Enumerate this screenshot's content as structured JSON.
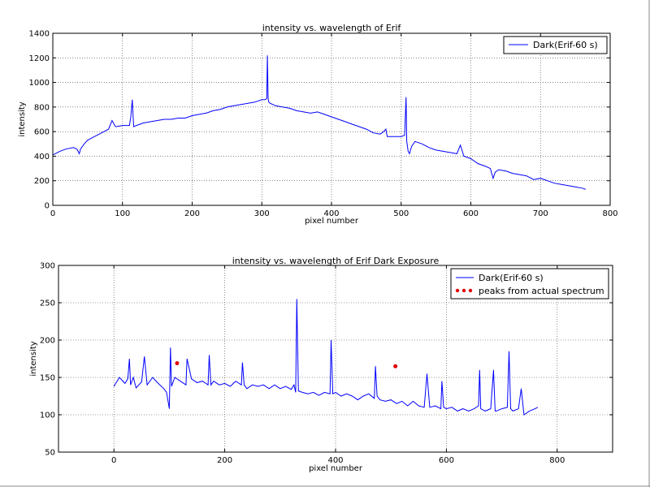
{
  "figure": {
    "background": "#ffffff",
    "border_color": "#888888"
  },
  "chart_data": [
    {
      "type": "line",
      "title": "intensity vs. wavelength of Erif",
      "xlabel": "pixel number",
      "ylabel": "intensity",
      "xlim": [
        0,
        800
      ],
      "ylim": [
        0,
        1400
      ],
      "xticks": [
        0,
        100,
        200,
        300,
        400,
        500,
        600,
        700,
        800
      ],
      "yticks": [
        0,
        200,
        400,
        600,
        800,
        1000,
        1200,
        1400
      ],
      "grid": true,
      "legend_position": "top-right",
      "series": [
        {
          "name": "Dark(Erif-60 s)",
          "color": "#0000ff",
          "marker": "line",
          "x": [
            0,
            10,
            20,
            30,
            35,
            38,
            40,
            45,
            50,
            60,
            70,
            80,
            85,
            90,
            100,
            110,
            112,
            114,
            116,
            120,
            130,
            140,
            150,
            160,
            170,
            180,
            190,
            200,
            210,
            220,
            230,
            240,
            250,
            260,
            270,
            280,
            290,
            300,
            305,
            307,
            308,
            309,
            310,
            312,
            320,
            330,
            340,
            350,
            360,
            370,
            380,
            390,
            400,
            410,
            420,
            430,
            440,
            450,
            460,
            470,
            475,
            478,
            480,
            490,
            500,
            505,
            507,
            508,
            509,
            510,
            512,
            515,
            520,
            530,
            540,
            550,
            560,
            570,
            580,
            585,
            590,
            600,
            610,
            620,
            628,
            632,
            635,
            640,
            650,
            660,
            670,
            680,
            690,
            700,
            710,
            720,
            730,
            740,
            750,
            760,
            765
          ],
          "y": [
            410,
            440,
            460,
            470,
            455,
            420,
            460,
            500,
            530,
            560,
            590,
            620,
            690,
            640,
            650,
            650,
            720,
            860,
            640,
            650,
            670,
            680,
            690,
            700,
            700,
            710,
            710,
            730,
            740,
            750,
            770,
            780,
            800,
            810,
            820,
            830,
            840,
            860,
            860,
            870,
            1220,
            870,
            840,
            830,
            810,
            800,
            790,
            770,
            760,
            750,
            760,
            740,
            720,
            700,
            680,
            660,
            640,
            620,
            590,
            580,
            600,
            620,
            560,
            560,
            560,
            570,
            880,
            520,
            480,
            440,
            420,
            480,
            520,
            500,
            470,
            450,
            440,
            430,
            420,
            490,
            400,
            380,
            340,
            320,
            300,
            220,
            270,
            290,
            280,
            260,
            250,
            240,
            210,
            220,
            200,
            180,
            170,
            160,
            150,
            140,
            130
          ]
        }
      ]
    },
    {
      "type": "line",
      "title": "intensity vs. wavelength of Erif Dark Exposure",
      "xlabel": "pixel number",
      "ylabel": "intensity",
      "xlim": [
        -100,
        900
      ],
      "ylim": [
        50,
        300
      ],
      "xticks": [
        0,
        200,
        400,
        600,
        800
      ],
      "yticks": [
        50,
        100,
        150,
        200,
        250,
        300
      ],
      "grid": true,
      "legend_position": "top-right",
      "series": [
        {
          "name": "Dark(Erif-60 s)",
          "color": "#0000ff",
          "marker": "line",
          "x": [
            0,
            10,
            20,
            25,
            28,
            30,
            35,
            40,
            50,
            55,
            60,
            70,
            80,
            90,
            95,
            100,
            102,
            104,
            110,
            120,
            130,
            132,
            140,
            150,
            160,
            170,
            172,
            175,
            180,
            190,
            200,
            210,
            220,
            230,
            232,
            235,
            240,
            250,
            260,
            270,
            280,
            290,
            300,
            310,
            320,
            325,
            328,
            330,
            333,
            340,
            350,
            360,
            370,
            380,
            390,
            392,
            395,
            400,
            410,
            420,
            430,
            440,
            450,
            460,
            470,
            472,
            475,
            480,
            490,
            500,
            510,
            520,
            530,
            540,
            550,
            560,
            565,
            570,
            580,
            590,
            592,
            595,
            600,
            610,
            620,
            630,
            640,
            650,
            658,
            660,
            662,
            670,
            680,
            685,
            688,
            690,
            700,
            710,
            713,
            716,
            720,
            730,
            735,
            740,
            750,
            760,
            765
          ],
          "y": [
            138,
            150,
            142,
            148,
            175,
            140,
            150,
            136,
            144,
            178,
            140,
            150,
            142,
            135,
            130,
            108,
            190,
            138,
            150,
            145,
            140,
            175,
            148,
            143,
            145,
            140,
            180,
            140,
            145,
            140,
            142,
            138,
            145,
            140,
            170,
            140,
            135,
            140,
            138,
            140,
            135,
            140,
            135,
            138,
            134,
            140,
            130,
            255,
            132,
            130,
            128,
            130,
            126,
            130,
            128,
            200,
            128,
            130,
            125,
            128,
            125,
            120,
            125,
            128,
            122,
            165,
            125,
            120,
            118,
            120,
            115,
            118,
            112,
            118,
            112,
            110,
            155,
            110,
            112,
            108,
            145,
            110,
            108,
            110,
            105,
            108,
            105,
            108,
            112,
            160,
            108,
            105,
            108,
            160,
            105,
            105,
            108,
            110,
            185,
            108,
            105,
            108,
            135,
            100,
            105,
            108,
            110
          ]
        },
        {
          "name": "peaks from actual spectrum",
          "color": "#e00000",
          "marker": "point",
          "x": [
            114,
            508
          ],
          "y": [
            169,
            165
          ]
        }
      ]
    }
  ]
}
